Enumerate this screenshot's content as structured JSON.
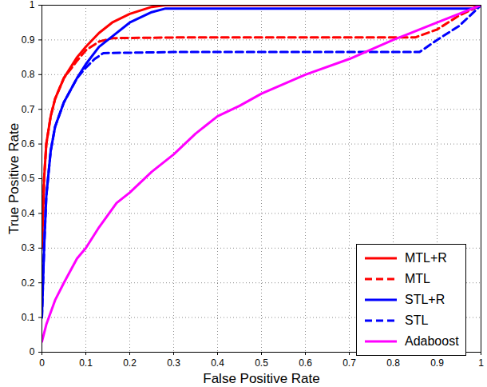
{
  "chart_data": {
    "type": "line",
    "x_label": "False Positive Rate",
    "y_label": "True Positive Rate",
    "xlim": [
      0,
      1
    ],
    "ylim": [
      0,
      1
    ],
    "xticks": [
      0,
      0.1,
      0.2,
      0.3,
      0.4,
      0.5,
      0.6,
      0.7,
      0.8,
      0.9,
      1
    ],
    "yticks": [
      0,
      0.1,
      0.2,
      0.3,
      0.4,
      0.5,
      0.6,
      0.7,
      0.8,
      0.9,
      1
    ],
    "grid": true,
    "legend": "bottom-right",
    "series": [
      {
        "name": "MTL+R",
        "color": "#ff0000",
        "line_style": "solid",
        "x": [
          0,
          0.005,
          0.01,
          0.02,
          0.03,
          0.05,
          0.08,
          0.1,
          0.13,
          0.16,
          0.2,
          0.25,
          0.28,
          1
        ],
        "values": [
          0.3,
          0.5,
          0.6,
          0.68,
          0.73,
          0.79,
          0.85,
          0.88,
          0.92,
          0.95,
          0.975,
          0.995,
          1,
          1
        ]
      },
      {
        "name": "MTL",
        "color": "#ff0000",
        "line_style": "dashed",
        "x": [
          0,
          0.005,
          0.01,
          0.02,
          0.03,
          0.05,
          0.08,
          0.1,
          0.13,
          0.16,
          0.3,
          0.85,
          0.9,
          0.95,
          1
        ],
        "values": [
          0.3,
          0.5,
          0.6,
          0.68,
          0.73,
          0.79,
          0.84,
          0.87,
          0.895,
          0.905,
          0.907,
          0.907,
          0.93,
          0.97,
          1
        ]
      },
      {
        "name": "STL+R",
        "color": "#0000ff",
        "line_style": "solid",
        "x": [
          0,
          0.005,
          0.01,
          0.02,
          0.03,
          0.05,
          0.08,
          0.1,
          0.13,
          0.16,
          0.2,
          0.25,
          0.28,
          0.98,
          1
        ],
        "values": [
          0.1,
          0.3,
          0.45,
          0.58,
          0.65,
          0.72,
          0.79,
          0.83,
          0.88,
          0.91,
          0.95,
          0.98,
          0.99,
          0.99,
          1
        ]
      },
      {
        "name": "STL",
        "color": "#0000ff",
        "line_style": "dashed",
        "x": [
          0,
          0.005,
          0.01,
          0.02,
          0.03,
          0.05,
          0.08,
          0.1,
          0.12,
          0.14,
          0.3,
          0.86,
          0.9,
          0.95,
          1
        ],
        "values": [
          0.1,
          0.3,
          0.45,
          0.58,
          0.65,
          0.72,
          0.79,
          0.82,
          0.845,
          0.862,
          0.865,
          0.865,
          0.9,
          0.94,
          1
        ]
      },
      {
        "name": "Adaboost",
        "color": "#ff00ff",
        "line_style": "solid",
        "x": [
          0,
          0.01,
          0.03,
          0.05,
          0.08,
          0.1,
          0.13,
          0.17,
          0.2,
          0.25,
          0.3,
          0.35,
          0.4,
          0.45,
          0.5,
          0.6,
          0.7,
          0.8,
          0.9,
          1
        ],
        "values": [
          0.03,
          0.08,
          0.15,
          0.2,
          0.27,
          0.3,
          0.36,
          0.43,
          0.46,
          0.52,
          0.57,
          0.63,
          0.68,
          0.71,
          0.745,
          0.8,
          0.845,
          0.9,
          0.95,
          1
        ]
      }
    ]
  }
}
